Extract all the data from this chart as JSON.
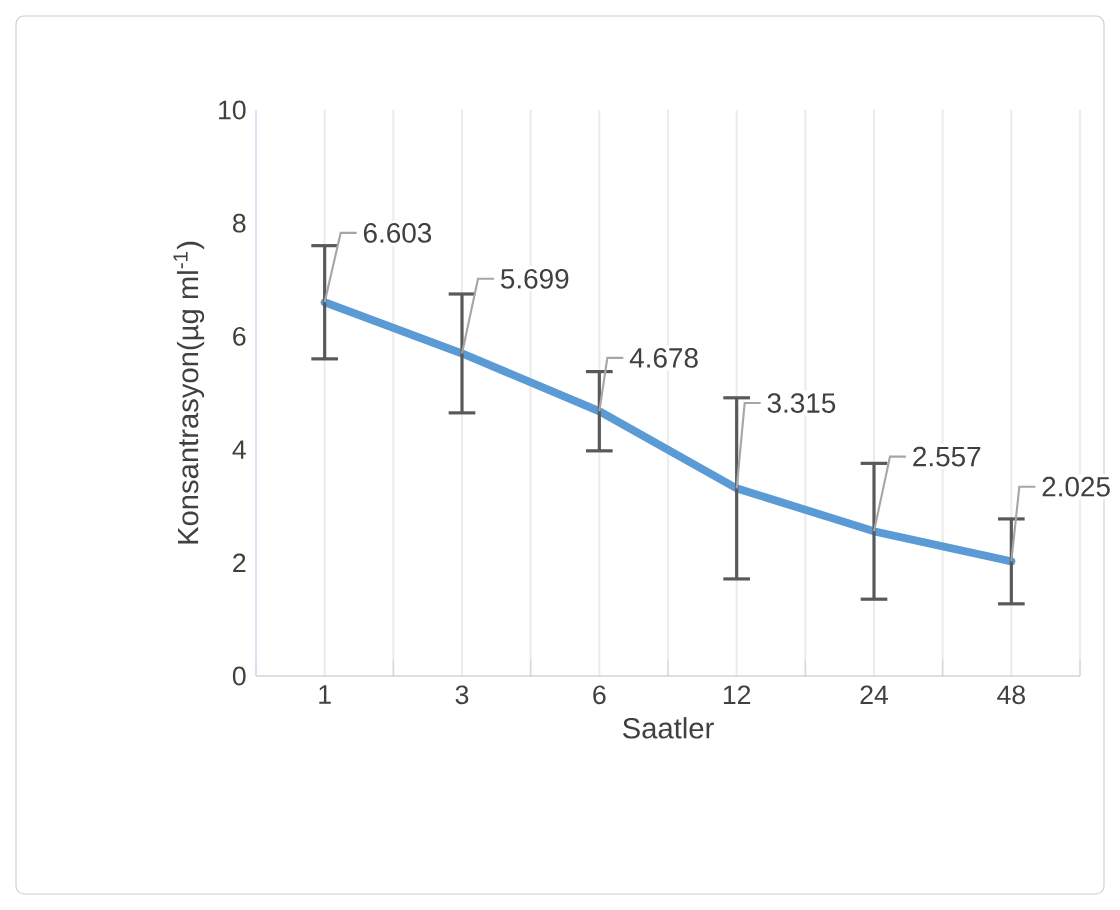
{
  "chart_data": {
    "type": "line",
    "xlabel": "Saatler",
    "ylabel": "Konsantrasyon(µg ml$^{-1}$)",
    "categories": [
      "1",
      "3",
      "6",
      "12",
      "24",
      "48"
    ],
    "values": [
      6.603,
      5.699,
      4.678,
      3.315,
      2.557,
      2.025
    ],
    "errors": [
      1.0,
      1.05,
      0.7,
      1.6,
      1.2,
      0.75
    ],
    "color": "#5b9bd5",
    "data_labels": true,
    "grid": "x",
    "marker": "none",
    "ylim": [
      0,
      10
    ],
    "yticks": [
      0,
      2,
      4,
      6,
      8,
      10
    ]
  }
}
